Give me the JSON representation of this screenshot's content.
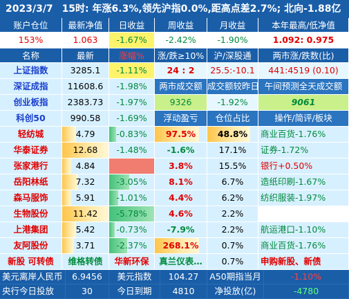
{
  "title": {
    "date": "2023/3/7",
    "summary": "15时: 年涨6.3%,领先沪指0.0%,距高点差2.7%; 北向-1.88亿"
  },
  "account_header": [
    "账户仓位",
    "最新净值",
    "日收益",
    "周收益",
    "月收益",
    "本年最高/低净值"
  ],
  "account_row": [
    "153%",
    "1.063",
    "-1.67%",
    "-2.42%",
    "-1.90%",
    "1.092: 0.975"
  ],
  "index_header": [
    "名称",
    "最新",
    "涨幅%",
    "涨/跌≥10%",
    "沪/深股通",
    "两市涨/跌数(比)"
  ],
  "index_rows": [
    {
      "name": "上证指数",
      "last": "3285.1",
      "chg": "-1.11%",
      "c3": "24 : 2",
      "c4": "25.5:-10.1",
      "c5": "441:4519 (0.10)"
    },
    {
      "name": "深证成指",
      "last": "11608.6",
      "chg": "-1.98%",
      "c3": "两市成交额",
      "c4": "成交额较昨日",
      "c5": "午间预测全天成交额"
    },
    {
      "name": "创业板指",
      "last": "2383.73",
      "chg": "-1.97%",
      "c3": "9326",
      "c4": "-1.92%",
      "c5": "9061"
    },
    {
      "name": "科创50",
      "last": "990.58",
      "chg": "-1.69%",
      "c3": "浮动盈亏",
      "c4": "仓位占比",
      "c5": "操作/简评/板块"
    }
  ],
  "stocks": [
    {
      "name": "轻纺城",
      "price": "4.79",
      "chg": "-0.83%",
      "pnl": "97.5%",
      "pos": "48.8%",
      "note": "商业百货-1.76%",
      "chg_fill": 0.15
    },
    {
      "name": "华泰证券",
      "price": "12.68",
      "chg": "-1.48%",
      "pnl": "-1.6%",
      "pos": "17.1%",
      "note": "证券-1.72%",
      "chg_fill": 0.0
    },
    {
      "name": "张家港行",
      "price": "4.84",
      "chg": "",
      "pnl": "3.8%",
      "pos": "15.5%",
      "note": "银行+0.50%",
      "chg_fill": 0.0
    },
    {
      "name": "岳阳林纸",
      "price": "7.32",
      "chg": "-3.05%",
      "pnl": "8.1%",
      "pos": "6.7%",
      "note": "造纸印刷-1.67%",
      "chg_fill": 0.45
    },
    {
      "name": "森马服饰",
      "price": "5.91",
      "chg": "-1.01%",
      "pnl": "4.4%",
      "pos": "6.2%",
      "note": "纺织服装-1.97%",
      "chg_fill": 0.2
    },
    {
      "name": "生物股份",
      "price": "11.42",
      "chg": "-5.78%",
      "pnl": "4.6%",
      "pos": "2.2%",
      "note": "",
      "chg_fill": 1.0
    },
    {
      "name": "上港集团",
      "price": "5.42",
      "chg": "-0.73%",
      "pnl": "-7.9%",
      "pos": "2.2%",
      "note": "航运港口-1.10%",
      "chg_fill": 0.12
    },
    {
      "name": "友阿股份",
      "price": "3.71",
      "chg": "-2.37%",
      "pnl": "268.1%",
      "pos": "0.7%",
      "note": "商业百货-1.76%",
      "chg_fill": 0.4
    }
  ],
  "extra_row": [
    "新股 可转债",
    "维格转债",
    "华新环保",
    "真兰仪表…",
    "0.7%",
    "申购新股、新债"
  ],
  "bottom1": {
    "l1": "美元离岸人民币",
    "v1": "6.9456",
    "l2": "美元指数",
    "v2": "104.27",
    "l3": "A50期指当月",
    "v3": "-1.10%"
  },
  "bottom2": {
    "l1": "央行今日投放",
    "v1": "30",
    "l2": "今日到期",
    "v2": "4810",
    "l3": "净投放(亿)",
    "v3": "-4780"
  },
  "colors": {
    "header_blue": "#1a5ea8",
    "cell_cyan": "#d7f0ff",
    "down_green": "#008a3c",
    "up_red": "#e00000"
  }
}
